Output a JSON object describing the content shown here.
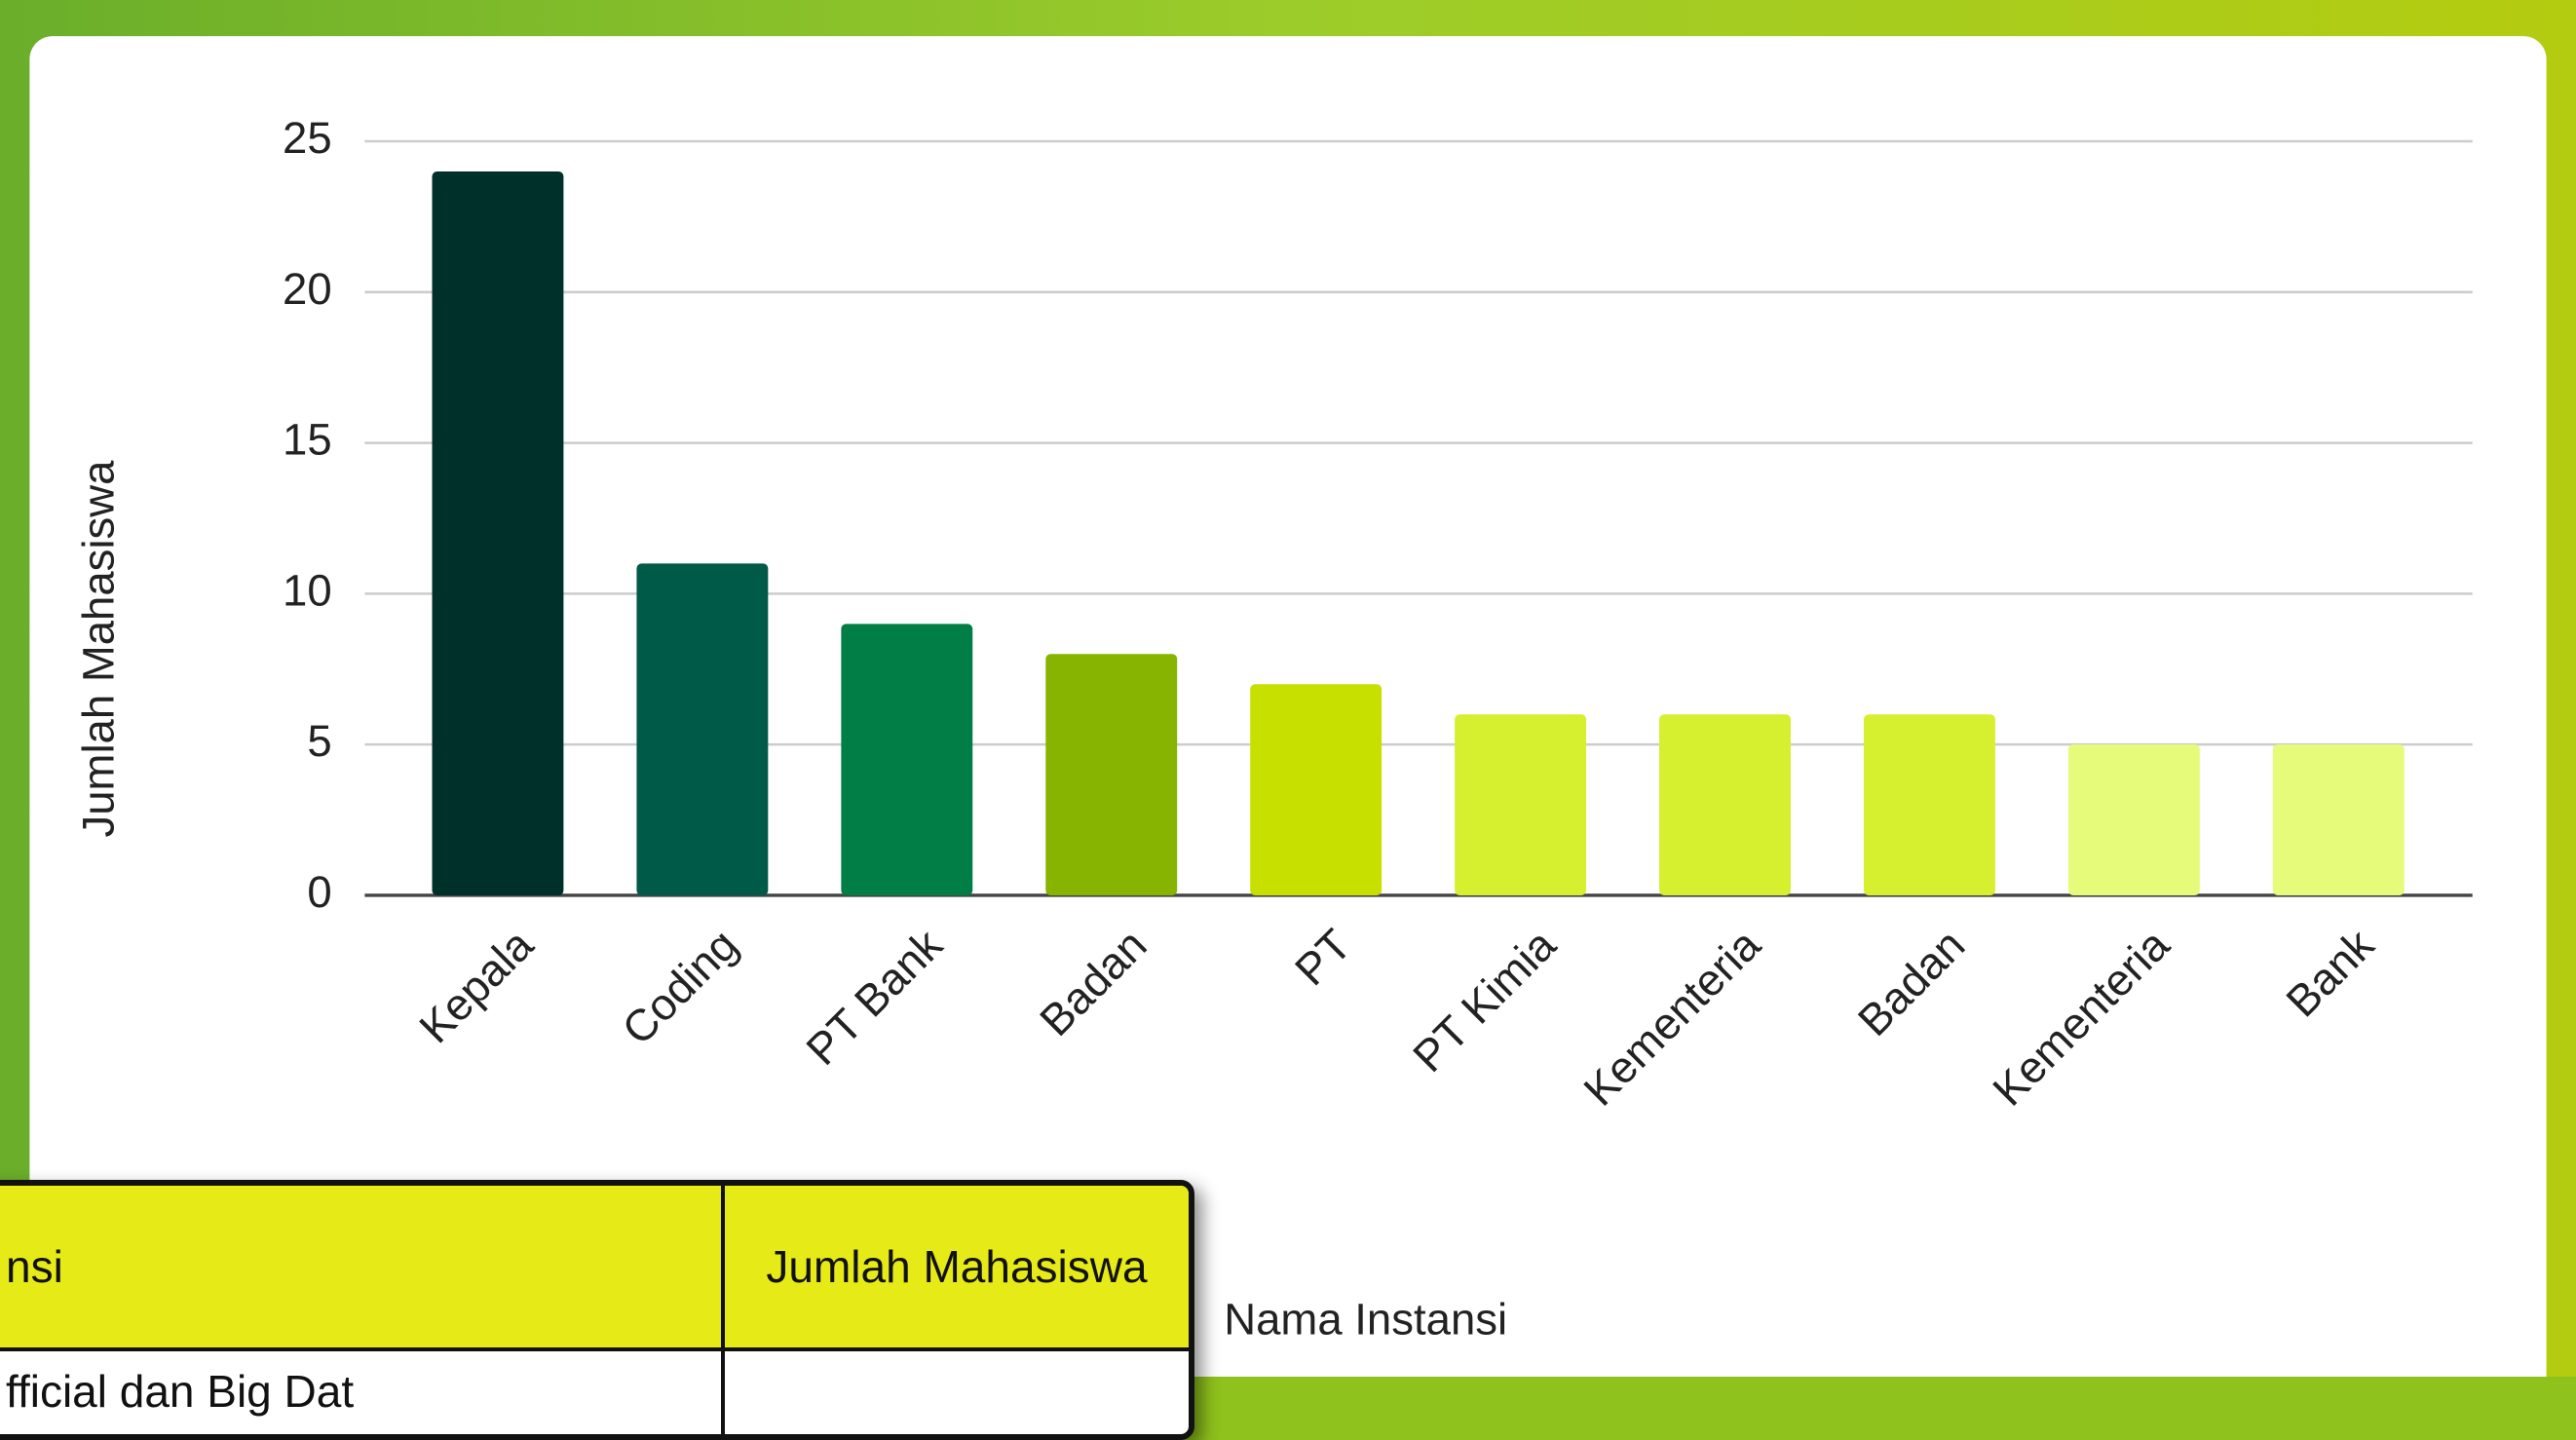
{
  "chart_data": {
    "type": "bar",
    "ylabel": "Jumlah Mahasiswa",
    "xlabel": "Nama Instansi",
    "categories": [
      "Kepala",
      "Coding",
      "PT Bank",
      "Badan",
      "PT",
      "PT Kimia",
      "Kementeria",
      "Badan",
      "Kementeria",
      "Bank"
    ],
    "values": [
      24,
      11,
      9,
      8,
      7,
      6,
      6,
      6,
      5,
      5
    ],
    "colors": [
      "#00302a",
      "#005a48",
      "#007e45",
      "#86b400",
      "#c8e000",
      "#d6ef2f",
      "#d6ef2f",
      "#d6ef2f",
      "#e7fb7a",
      "#e7fb7a"
    ],
    "ylim": [
      0,
      25
    ],
    "yticks": [
      0,
      5,
      10,
      15,
      20,
      25
    ],
    "grid": true
  },
  "table": {
    "header": [
      "nsi",
      "Jumlah Mahasiswa"
    ],
    "rows": [
      [
        "fficial dan Big Dat",
        ""
      ]
    ]
  }
}
